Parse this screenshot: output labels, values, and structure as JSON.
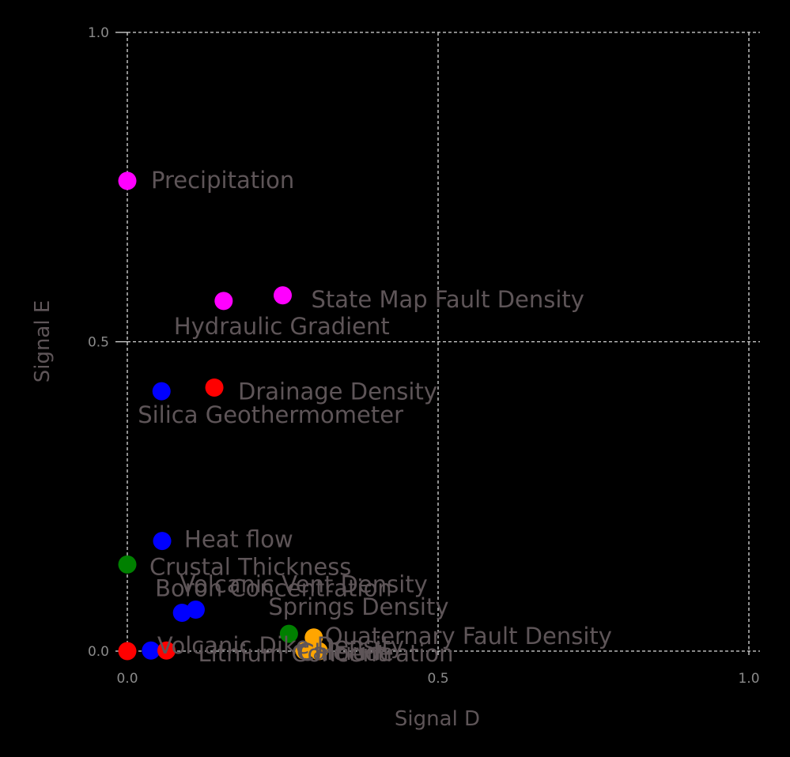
{
  "chart_data": {
    "type": "scatter",
    "xlabel": "Signal D",
    "ylabel": "Signal E",
    "xlim": [
      0,
      1
    ],
    "ylim": [
      0,
      1
    ],
    "x_ticks": [
      "0.0",
      "0.5",
      "1.0"
    ],
    "y_ticks": [
      "0.0",
      "0.5",
      "1.0"
    ],
    "grid": true,
    "points": [
      {
        "label": "Precipitation",
        "x": 0.0,
        "y": 0.76,
        "color": "#ff00ff"
      },
      {
        "label": "State Map Fault Density",
        "x": 0.25,
        "y": 0.575,
        "color": "#ff00ff"
      },
      {
        "label": "Hydraulic Gradient",
        "x": 0.155,
        "y": 0.566,
        "color": "#ff00ff"
      },
      {
        "label": "Drainage Density",
        "x": 0.14,
        "y": 0.426,
        "color": "#ff0000"
      },
      {
        "label": "Silica Geothermometer",
        "x": 0.055,
        "y": 0.42,
        "color": "#0000ff"
      },
      {
        "label": "Heat flow",
        "x": 0.056,
        "y": 0.178,
        "color": "#0000ff"
      },
      {
        "label": "Crustal Thickness",
        "x": 0.0,
        "y": 0.14,
        "color": "#008000"
      },
      {
        "label": "Volcanic Vent Density",
        "x": 0.11,
        "y": 0.067,
        "color": "#0000ff"
      },
      {
        "label": "Boron Concentration",
        "x": 0.088,
        "y": 0.062,
        "color": "#0000ff"
      },
      {
        "label": "Springs Density",
        "x": 0.26,
        "y": 0.028,
        "color": "#008000"
      },
      {
        "label": "Volcanic Dike Density",
        "x": 0.038,
        "y": 0.001,
        "color": "#0000ff"
      },
      {
        "label": "Quaternary Fault Density",
        "x": 0.3,
        "y": 0.022,
        "color": "#ffa500"
      },
      {
        "label": "Lithium Concentration",
        "x": 0.063,
        "y": 0.001,
        "color": "#ff0000"
      },
      {
        "label": "Calcium",
        "x": 0.285,
        "y": 0.001,
        "color": "#ffa500"
      },
      {
        "label": "Chloride",
        "x": 0.308,
        "y": 0.0,
        "color": "#ffa500"
      },
      {
        "label": "",
        "x": 0.0,
        "y": 0.0,
        "color": "#ff0000"
      }
    ]
  }
}
